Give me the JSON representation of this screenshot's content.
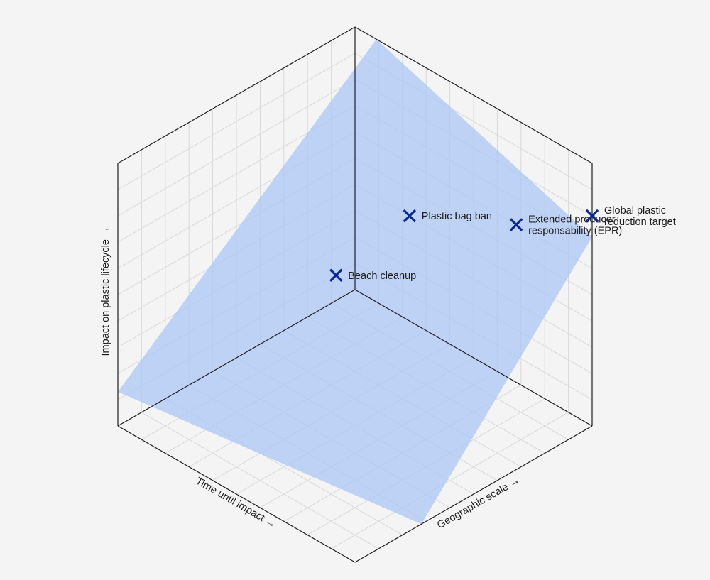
{
  "chart_data": {
    "type": "scatter",
    "projection": "isometric-3d",
    "axes": {
      "x": {
        "label": "Time until impact →",
        "range": [
          0,
          10
        ]
      },
      "y": {
        "label": "Geographic scale →",
        "range": [
          0,
          10
        ]
      },
      "z": {
        "label": "Impact on plastic lifecycle →",
        "range": [
          0,
          10
        ]
      }
    },
    "grid": true,
    "plane": {
      "color": "#a9c5f5"
    },
    "marker_color": "#0d2790",
    "points": [
      {
        "name": "Beach cleanup",
        "label_lines": [
          "Beach cleanup"
        ],
        "x": 1.8,
        "y": 1.0,
        "z": 2.0
      },
      {
        "name": "Plastic bag ban",
        "label_lines": [
          "Plastic bag ban"
        ],
        "x": 0.0,
        "y": 2.3,
        "z": 4.0
      },
      {
        "name": "Extended producer responsability (EPR)",
        "label_lines": [
          "Extended  producer",
          "responsability (EPR)"
        ],
        "x": 0.0,
        "y": 6.8,
        "z": 6.0
      },
      {
        "name": "Global plastic reduction target",
        "label_lines": [
          "Global plastic",
          "reduction target"
        ],
        "x": 0.0,
        "y": 10.0,
        "z": 8.0
      }
    ]
  }
}
